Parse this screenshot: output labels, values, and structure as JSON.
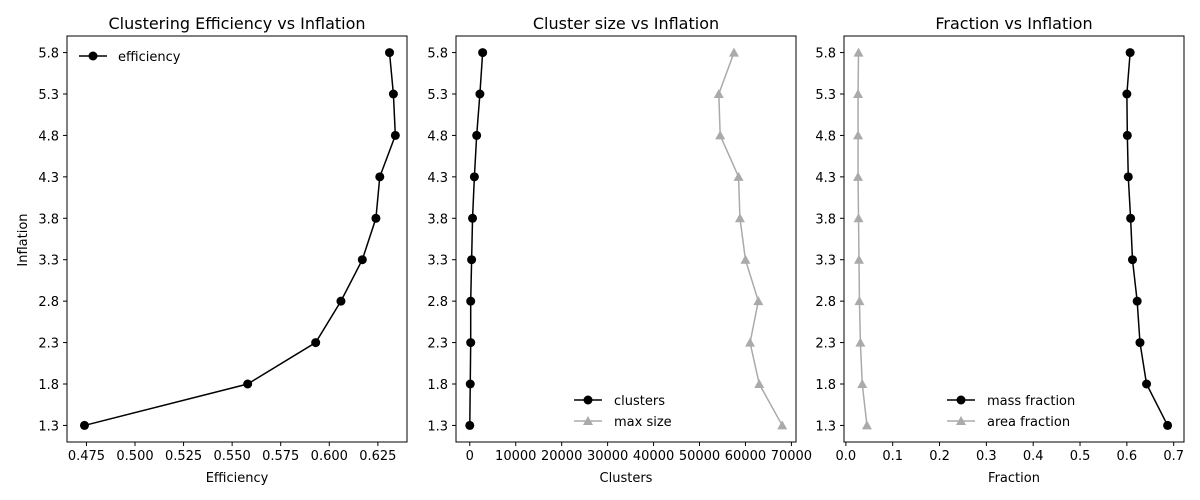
{
  "figure": {
    "background": "#ffffff"
  },
  "chart_data": [
    {
      "type": "line",
      "title": "Clustering Efficiency vs Inflation",
      "xlabel": "Efficiency",
      "ylabel": "Inflation",
      "xlim": [
        0.465,
        0.64
      ],
      "ylim": [
        1.1,
        6.0
      ],
      "xticks": [
        "0.475",
        "0.500",
        "0.525",
        "0.550",
        "0.575",
        "0.600",
        "0.625"
      ],
      "xtick_values": [
        0.475,
        0.5,
        0.525,
        0.55,
        0.575,
        0.6,
        0.625
      ],
      "y": [
        1.3,
        1.8,
        2.3,
        2.8,
        3.3,
        3.8,
        4.3,
        4.8,
        5.3,
        5.8
      ],
      "yticks": [
        "1.3",
        "1.8",
        "2.3",
        "2.8",
        "3.3",
        "3.8",
        "4.3",
        "4.8",
        "5.3",
        "5.8"
      ],
      "legend_position": "top-left",
      "grid": false,
      "series": [
        {
          "name": "efficiency",
          "color": "#000000",
          "marker": "circle",
          "x": [
            0.474,
            0.558,
            0.593,
            0.606,
            0.617,
            0.624,
            0.626,
            0.634,
            0.633,
            0.631
          ]
        }
      ]
    },
    {
      "type": "line",
      "title": "Cluster size vs Inflation",
      "xlabel": "Clusters",
      "ylabel": "",
      "xlim": [
        -3000,
        71000
      ],
      "ylim": [
        1.1,
        6.0
      ],
      "xticks": [
        "0",
        "10000",
        "20000",
        "30000",
        "40000",
        "50000",
        "60000",
        "70000"
      ],
      "xtick_values": [
        0,
        10000,
        20000,
        30000,
        40000,
        50000,
        60000,
        70000
      ],
      "y": [
        1.3,
        1.8,
        2.3,
        2.8,
        3.3,
        3.8,
        4.3,
        4.8,
        5.3,
        5.8
      ],
      "yticks": [
        "1.3",
        "1.8",
        "2.3",
        "2.8",
        "3.3",
        "3.8",
        "4.3",
        "4.8",
        "5.3",
        "5.8"
      ],
      "legend_position": "lower-right",
      "grid": false,
      "series": [
        {
          "name": "clusters",
          "color": "#000000",
          "marker": "circle",
          "x": [
            0,
            100,
            200,
            200,
            400,
            600,
            1000,
            1500,
            2200,
            2800
          ]
        },
        {
          "name": "max size",
          "color": "#aaaaaa",
          "marker": "triangle",
          "x": [
            68000,
            63000,
            61000,
            62800,
            60000,
            58800,
            58500,
            54500,
            54200,
            57500
          ]
        }
      ]
    },
    {
      "type": "line",
      "title": "Fraction vs Inflation",
      "xlabel": "Fraction",
      "ylabel": "",
      "xlim": [
        -0.004,
        0.722
      ],
      "ylim": [
        1.1,
        6.0
      ],
      "xticks": [
        "0.0",
        "0.1",
        "0.2",
        "0.3",
        "0.4",
        "0.5",
        "0.6",
        "0.7"
      ],
      "xtick_values": [
        0.0,
        0.1,
        0.2,
        0.3,
        0.4,
        0.5,
        0.6,
        0.7
      ],
      "y": [
        1.3,
        1.8,
        2.3,
        2.8,
        3.3,
        3.8,
        4.3,
        4.8,
        5.3,
        5.8
      ],
      "yticks": [
        "1.3",
        "1.8",
        "2.3",
        "2.8",
        "3.3",
        "3.8",
        "4.3",
        "4.8",
        "5.3",
        "5.8"
      ],
      "legend_position": "lower-center",
      "grid": false,
      "series": [
        {
          "name": "mass fraction",
          "color": "#000000",
          "marker": "circle",
          "x": [
            0.687,
            0.642,
            0.628,
            0.622,
            0.612,
            0.608,
            0.603,
            0.601,
            0.6,
            0.607
          ]
        },
        {
          "name": "area fraction",
          "color": "#aaaaaa",
          "marker": "triangle",
          "x": [
            0.045,
            0.035,
            0.031,
            0.029,
            0.028,
            0.027,
            0.026,
            0.026,
            0.026,
            0.027
          ]
        }
      ]
    }
  ]
}
